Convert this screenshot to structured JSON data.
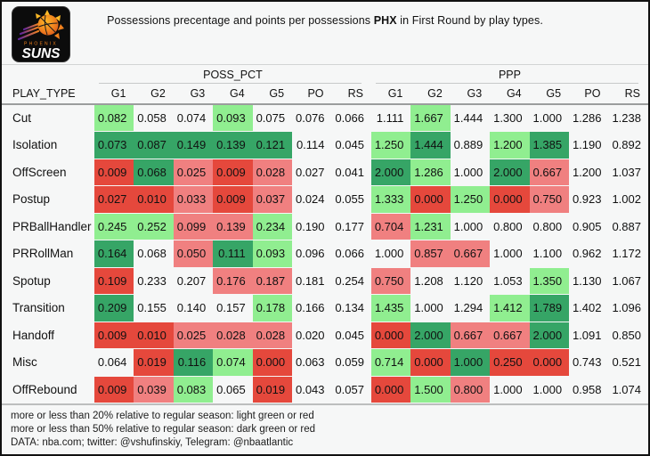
{
  "title": {
    "part1": "Possessions precentage and points per possessions ",
    "team": "PHX",
    "part2": " in First Round by play types."
  },
  "logo": {
    "team": "Phoenix Suns",
    "line1": "PHOENIX",
    "line2": "SUNS"
  },
  "colors": {
    "lg": "#90EE90",
    "dg": "#36A566",
    "lr": "#F08080",
    "dr": "#E5483C",
    "w": ""
  },
  "footer": {
    "lines": [
      "more or less than 20% relative to regular season: light green or red",
      "more or less than 50% relative to regular season: dark green or red",
      "DATA: nba.com; twitter: @vshufinskiy, Telegram: @nbaatlantic"
    ]
  },
  "chart_data": {
    "type": "heatmap-table",
    "row_label": "PLAY_TYPE",
    "col_groups": [
      "POSS_PCT",
      "PPP"
    ],
    "columns": [
      "G1",
      "G2",
      "G3",
      "G4",
      "G5",
      "PO",
      "RS"
    ],
    "color_legend": {
      "lg": "more than 20% above regular season (light green)",
      "dg": "more than 50% above regular season (dark green)",
      "lr": "more than 20% below regular season (light red)",
      "dr": "more than 50% below regular season (dark red)",
      "w": "within 20% of regular season (no fill)"
    },
    "rows": [
      {
        "play_type": "Cut",
        "POSS_PCT": [
          [
            "0.082",
            "lg"
          ],
          [
            "0.058",
            "w"
          ],
          [
            "0.074",
            "w"
          ],
          [
            "0.093",
            "lg"
          ],
          [
            "0.075",
            "w"
          ],
          [
            "0.076",
            "w"
          ],
          [
            "0.066",
            "w"
          ]
        ],
        "PPP": [
          [
            "1.111",
            "w"
          ],
          [
            "1.667",
            "lg"
          ],
          [
            "1.444",
            "w"
          ],
          [
            "1.300",
            "w"
          ],
          [
            "1.000",
            "w"
          ],
          [
            "1.286",
            "w"
          ],
          [
            "1.238",
            "w"
          ]
        ]
      },
      {
        "play_type": "Isolation",
        "POSS_PCT": [
          [
            "0.073",
            "dg"
          ],
          [
            "0.087",
            "dg"
          ],
          [
            "0.149",
            "dg"
          ],
          [
            "0.139",
            "dg"
          ],
          [
            "0.121",
            "dg"
          ],
          [
            "0.114",
            "w"
          ],
          [
            "0.045",
            "w"
          ]
        ],
        "PPP": [
          [
            "1.250",
            "lg"
          ],
          [
            "1.444",
            "dg"
          ],
          [
            "0.889",
            "w"
          ],
          [
            "1.200",
            "lg"
          ],
          [
            "1.385",
            "dg"
          ],
          [
            "1.190",
            "w"
          ],
          [
            "0.892",
            "w"
          ]
        ]
      },
      {
        "play_type": "OffScreen",
        "POSS_PCT": [
          [
            "0.009",
            "dr"
          ],
          [
            "0.068",
            "dg"
          ],
          [
            "0.025",
            "lr"
          ],
          [
            "0.009",
            "dr"
          ],
          [
            "0.028",
            "lr"
          ],
          [
            "0.027",
            "w"
          ],
          [
            "0.041",
            "w"
          ]
        ],
        "PPP": [
          [
            "2.000",
            "dg"
          ],
          [
            "1.286",
            "lg"
          ],
          [
            "1.000",
            "w"
          ],
          [
            "2.000",
            "dg"
          ],
          [
            "0.667",
            "lr"
          ],
          [
            "1.200",
            "w"
          ],
          [
            "1.037",
            "w"
          ]
        ]
      },
      {
        "play_type": "Postup",
        "POSS_PCT": [
          [
            "0.027",
            "dr"
          ],
          [
            "0.010",
            "dr"
          ],
          [
            "0.033",
            "lr"
          ],
          [
            "0.009",
            "dr"
          ],
          [
            "0.037",
            "lr"
          ],
          [
            "0.024",
            "w"
          ],
          [
            "0.055",
            "w"
          ]
        ],
        "PPP": [
          [
            "1.333",
            "lg"
          ],
          [
            "0.000",
            "dr"
          ],
          [
            "1.250",
            "lg"
          ],
          [
            "0.000",
            "dr"
          ],
          [
            "0.750",
            "lr"
          ],
          [
            "0.923",
            "w"
          ],
          [
            "1.002",
            "w"
          ]
        ]
      },
      {
        "play_type": "PRBallHandler",
        "POSS_PCT": [
          [
            "0.245",
            "lg"
          ],
          [
            "0.252",
            "lg"
          ],
          [
            "0.099",
            "lr"
          ],
          [
            "0.139",
            "lr"
          ],
          [
            "0.234",
            "lg"
          ],
          [
            "0.190",
            "w"
          ],
          [
            "0.177",
            "w"
          ]
        ],
        "PPP": [
          [
            "0.704",
            "lr"
          ],
          [
            "1.231",
            "lg"
          ],
          [
            "1.000",
            "w"
          ],
          [
            "0.800",
            "w"
          ],
          [
            "0.800",
            "w"
          ],
          [
            "0.905",
            "w"
          ],
          [
            "0.887",
            "w"
          ]
        ]
      },
      {
        "play_type": "PRRollMan",
        "POSS_PCT": [
          [
            "0.164",
            "dg"
          ],
          [
            "0.068",
            "w"
          ],
          [
            "0.050",
            "lr"
          ],
          [
            "0.111",
            "dg"
          ],
          [
            "0.093",
            "lg"
          ],
          [
            "0.096",
            "w"
          ],
          [
            "0.066",
            "w"
          ]
        ],
        "PPP": [
          [
            "1.000",
            "w"
          ],
          [
            "0.857",
            "lr"
          ],
          [
            "0.667",
            "lr"
          ],
          [
            "1.000",
            "w"
          ],
          [
            "1.100",
            "w"
          ],
          [
            "0.962",
            "w"
          ],
          [
            "1.172",
            "w"
          ]
        ]
      },
      {
        "play_type": "Spotup",
        "POSS_PCT": [
          [
            "0.109",
            "dr"
          ],
          [
            "0.233",
            "w"
          ],
          [
            "0.207",
            "w"
          ],
          [
            "0.176",
            "lr"
          ],
          [
            "0.187",
            "lr"
          ],
          [
            "0.181",
            "w"
          ],
          [
            "0.254",
            "w"
          ]
        ],
        "PPP": [
          [
            "0.750",
            "lr"
          ],
          [
            "1.208",
            "w"
          ],
          [
            "1.120",
            "w"
          ],
          [
            "1.053",
            "w"
          ],
          [
            "1.350",
            "lg"
          ],
          [
            "1.130",
            "w"
          ],
          [
            "1.067",
            "w"
          ]
        ]
      },
      {
        "play_type": "Transition",
        "POSS_PCT": [
          [
            "0.209",
            "dg"
          ],
          [
            "0.155",
            "w"
          ],
          [
            "0.140",
            "w"
          ],
          [
            "0.157",
            "w"
          ],
          [
            "0.178",
            "lg"
          ],
          [
            "0.166",
            "w"
          ],
          [
            "0.134",
            "w"
          ]
        ],
        "PPP": [
          [
            "1.435",
            "lg"
          ],
          [
            "1.000",
            "w"
          ],
          [
            "1.294",
            "w"
          ],
          [
            "1.412",
            "lg"
          ],
          [
            "1.789",
            "dg"
          ],
          [
            "1.402",
            "w"
          ],
          [
            "1.096",
            "w"
          ]
        ]
      },
      {
        "play_type": "Handoff",
        "POSS_PCT": [
          [
            "0.009",
            "dr"
          ],
          [
            "0.010",
            "dr"
          ],
          [
            "0.025",
            "lr"
          ],
          [
            "0.028",
            "lr"
          ],
          [
            "0.028",
            "lr"
          ],
          [
            "0.020",
            "w"
          ],
          [
            "0.045",
            "w"
          ]
        ],
        "PPP": [
          [
            "0.000",
            "dr"
          ],
          [
            "2.000",
            "dg"
          ],
          [
            "0.667",
            "lr"
          ],
          [
            "0.667",
            "lr"
          ],
          [
            "2.000",
            "dg"
          ],
          [
            "1.091",
            "w"
          ],
          [
            "0.850",
            "w"
          ]
        ]
      },
      {
        "play_type": "Misc",
        "POSS_PCT": [
          [
            "0.064",
            "w"
          ],
          [
            "0.019",
            "dr"
          ],
          [
            "0.116",
            "dg"
          ],
          [
            "0.074",
            "lg"
          ],
          [
            "0.000",
            "dr"
          ],
          [
            "0.063",
            "w"
          ],
          [
            "0.059",
            "w"
          ]
        ],
        "PPP": [
          [
            "0.714",
            "lg"
          ],
          [
            "0.000",
            "dr"
          ],
          [
            "1.000",
            "dg"
          ],
          [
            "0.250",
            "dr"
          ],
          [
            "0.000",
            "dr"
          ],
          [
            "0.743",
            "w"
          ],
          [
            "0.521",
            "w"
          ]
        ]
      },
      {
        "play_type": "OffRebound",
        "POSS_PCT": [
          [
            "0.009",
            "dr"
          ],
          [
            "0.039",
            "lr"
          ],
          [
            "0.083",
            "lg"
          ],
          [
            "0.065",
            "w"
          ],
          [
            "0.019",
            "dr"
          ],
          [
            "0.043",
            "w"
          ],
          [
            "0.057",
            "w"
          ]
        ],
        "PPP": [
          [
            "0.000",
            "dr"
          ],
          [
            "1.500",
            "lg"
          ],
          [
            "0.800",
            "lr"
          ],
          [
            "1.000",
            "w"
          ],
          [
            "1.000",
            "w"
          ],
          [
            "0.958",
            "w"
          ],
          [
            "1.074",
            "w"
          ]
        ]
      }
    ]
  }
}
